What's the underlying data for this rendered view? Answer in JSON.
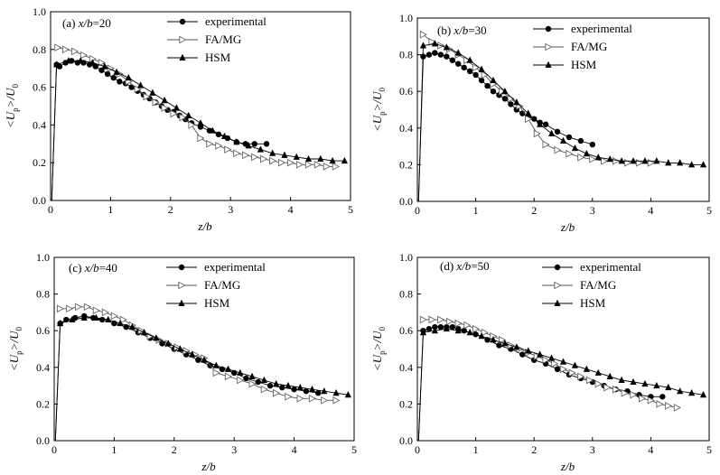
{
  "chart_data": [
    {
      "type": "line",
      "title": "(a) x/b=20",
      "title_parts": {
        "prefix": "(a) ",
        "var": "x/b",
        "rest": "=20"
      },
      "xlabel": "z/b",
      "ylabel": "<Up>/U0",
      "xlim": [
        0,
        5
      ],
      "ylim": [
        0,
        1.0
      ],
      "xticks": [
        "0",
        "1",
        "2",
        "3",
        "4",
        "5"
      ],
      "yticks": [
        "0.0",
        "0.2",
        "0.4",
        "0.6",
        "0.8",
        "1.0"
      ],
      "legend": "top-right",
      "series": [
        {
          "name": "experimental",
          "marker": "circle",
          "x": [
            0.02,
            0.1,
            0.15,
            0.25,
            0.35,
            0.45,
            0.55,
            0.65,
            0.75,
            0.85,
            0.95,
            1.05,
            1.15,
            1.25,
            1.35,
            1.45,
            1.55,
            1.65,
            1.75,
            1.85,
            1.95,
            2.05,
            2.15,
            2.25,
            2.35,
            2.5,
            2.65,
            2.8,
            2.95,
            3.1,
            3.25,
            3.4,
            3.6
          ],
          "y": [
            0.0,
            0.72,
            0.71,
            0.73,
            0.74,
            0.73,
            0.73,
            0.72,
            0.71,
            0.69,
            0.67,
            0.65,
            0.63,
            0.62,
            0.6,
            0.58,
            0.56,
            0.54,
            0.52,
            0.5,
            0.48,
            0.47,
            0.45,
            0.43,
            0.41,
            0.39,
            0.37,
            0.35,
            0.33,
            0.31,
            0.3,
            0.3,
            0.3
          ]
        },
        {
          "name": "FA/MG",
          "marker": "triangle-right-open",
          "x": [
            0.12,
            0.25,
            0.4,
            0.55,
            0.7,
            0.85,
            1.0,
            1.15,
            1.3,
            1.45,
            1.6,
            1.75,
            1.9,
            2.05,
            2.2,
            2.35,
            2.5,
            2.65,
            2.8,
            2.95,
            3.1,
            3.25,
            3.4,
            3.55,
            3.7,
            3.85,
            4.0,
            4.15,
            4.3,
            4.45,
            4.6,
            4.75
          ],
          "y": [
            0.81,
            0.8,
            0.79,
            0.77,
            0.75,
            0.73,
            0.7,
            0.67,
            0.63,
            0.59,
            0.55,
            0.52,
            0.49,
            0.46,
            0.44,
            0.4,
            0.33,
            0.3,
            0.29,
            0.27,
            0.25,
            0.24,
            0.23,
            0.22,
            0.21,
            0.2,
            0.2,
            0.19,
            0.19,
            0.19,
            0.18,
            0.18
          ]
        },
        {
          "name": "HSM",
          "marker": "triangle-up",
          "x": [
            0.02,
            0.1,
            0.3,
            0.5,
            0.7,
            0.9,
            1.1,
            1.3,
            1.5,
            1.7,
            1.9,
            2.1,
            2.3,
            2.5,
            2.7,
            2.9,
            3.1,
            3.3,
            3.5,
            3.7,
            3.9,
            4.1,
            4.3,
            4.5,
            4.7,
            4.9
          ],
          "y": [
            0.0,
            0.72,
            0.74,
            0.74,
            0.73,
            0.71,
            0.68,
            0.65,
            0.61,
            0.57,
            0.53,
            0.49,
            0.45,
            0.41,
            0.37,
            0.34,
            0.31,
            0.29,
            0.27,
            0.25,
            0.24,
            0.23,
            0.22,
            0.22,
            0.21,
            0.21
          ]
        }
      ]
    },
    {
      "type": "line",
      "title": "(b) x/b=30",
      "title_parts": {
        "prefix": "(b) ",
        "var": "x/b",
        "rest": "=30"
      },
      "xlabel": "z/b",
      "ylabel": "<Up>/U0",
      "xlim": [
        0,
        5
      ],
      "ylim": [
        0,
        1.0
      ],
      "xticks": [
        "0",
        "1",
        "2",
        "3",
        "4",
        "5"
      ],
      "yticks": [
        "0.0",
        "0.2",
        "0.4",
        "0.6",
        "0.8",
        "1.0"
      ],
      "legend": "top-right",
      "series": [
        {
          "name": "experimental",
          "marker": "circle",
          "x": [
            0.02,
            0.1,
            0.2,
            0.3,
            0.4,
            0.5,
            0.6,
            0.7,
            0.8,
            0.9,
            1.0,
            1.1,
            1.2,
            1.3,
            1.4,
            1.5,
            1.6,
            1.7,
            1.8,
            1.9,
            2.0,
            2.1,
            2.2,
            2.4,
            2.6,
            2.8,
            3.0
          ],
          "y": [
            0.0,
            0.79,
            0.8,
            0.81,
            0.8,
            0.79,
            0.77,
            0.75,
            0.73,
            0.71,
            0.69,
            0.66,
            0.63,
            0.6,
            0.58,
            0.56,
            0.53,
            0.5,
            0.48,
            0.46,
            0.45,
            0.43,
            0.42,
            0.38,
            0.35,
            0.33,
            0.31
          ]
        },
        {
          "name": "FA/MG",
          "marker": "triangle-right-open",
          "x": [
            0.1,
            0.25,
            0.4,
            0.55,
            0.7,
            0.85,
            1.0,
            1.15,
            1.3,
            1.45,
            1.6,
            1.75,
            1.9,
            2.05,
            2.2,
            2.4,
            2.6,
            2.8,
            3.0,
            3.2,
            3.4,
            3.6,
            3.8,
            4.0
          ],
          "y": [
            0.91,
            0.87,
            0.85,
            0.83,
            0.8,
            0.77,
            0.73,
            0.69,
            0.64,
            0.6,
            0.56,
            0.52,
            0.45,
            0.37,
            0.31,
            0.28,
            0.26,
            0.24,
            0.23,
            0.22,
            0.22,
            0.21,
            0.21,
            0.21
          ]
        },
        {
          "name": "HSM",
          "marker": "triangle-up",
          "x": [
            0.02,
            0.1,
            0.3,
            0.5,
            0.7,
            0.9,
            1.1,
            1.3,
            1.5,
            1.7,
            1.9,
            2.1,
            2.3,
            2.5,
            2.7,
            2.9,
            3.1,
            3.3,
            3.5,
            3.7,
            3.9,
            4.1,
            4.3,
            4.5,
            4.7,
            4.9
          ],
          "y": [
            0.0,
            0.85,
            0.86,
            0.84,
            0.81,
            0.77,
            0.72,
            0.66,
            0.6,
            0.54,
            0.48,
            0.42,
            0.37,
            0.33,
            0.29,
            0.26,
            0.24,
            0.23,
            0.22,
            0.22,
            0.22,
            0.22,
            0.21,
            0.21,
            0.2,
            0.2
          ]
        }
      ]
    },
    {
      "type": "line",
      "title": "(c) x/b=40",
      "title_parts": {
        "prefix": "(c) ",
        "var": "x/b",
        "rest": "=40"
      },
      "xlabel": "z/b",
      "ylabel": "<Up>/U0",
      "xlim": [
        0,
        5
      ],
      "ylim": [
        0,
        1.0
      ],
      "xticks": [
        "0",
        "1",
        "2",
        "3",
        "4",
        "5"
      ],
      "yticks": [
        "0.0",
        "0.2",
        "0.4",
        "0.6",
        "0.8",
        "1.0"
      ],
      "legend": "top-right",
      "series": [
        {
          "name": "experimental",
          "marker": "circle",
          "x": [
            0.02,
            0.1,
            0.2,
            0.35,
            0.5,
            0.65,
            0.8,
            1.0,
            1.2,
            1.4,
            1.6,
            1.8,
            2.0,
            2.2,
            2.4,
            2.6,
            2.8,
            3.0,
            3.2,
            3.4,
            3.6,
            3.8,
            4.0,
            4.2,
            4.4
          ],
          "y": [
            0.0,
            0.64,
            0.66,
            0.67,
            0.68,
            0.67,
            0.66,
            0.64,
            0.62,
            0.59,
            0.56,
            0.53,
            0.5,
            0.47,
            0.44,
            0.41,
            0.39,
            0.37,
            0.34,
            0.32,
            0.3,
            0.29,
            0.28,
            0.27,
            0.26
          ]
        },
        {
          "name": "FA/MG",
          "marker": "triangle-right-open",
          "x": [
            0.1,
            0.25,
            0.4,
            0.55,
            0.7,
            0.85,
            1.0,
            1.15,
            1.3,
            1.45,
            1.6,
            1.75,
            1.9,
            2.05,
            2.2,
            2.35,
            2.5,
            2.7,
            2.9,
            3.1,
            3.3,
            3.5,
            3.7,
            3.9,
            4.1,
            4.3,
            4.5,
            4.7
          ],
          "y": [
            0.72,
            0.72,
            0.73,
            0.73,
            0.71,
            0.7,
            0.68,
            0.66,
            0.63,
            0.6,
            0.57,
            0.55,
            0.53,
            0.51,
            0.49,
            0.47,
            0.45,
            0.37,
            0.35,
            0.33,
            0.31,
            0.28,
            0.26,
            0.24,
            0.23,
            0.23,
            0.22,
            0.22
          ]
        },
        {
          "name": "HSM",
          "marker": "triangle-up",
          "x": [
            0.02,
            0.1,
            0.3,
            0.5,
            0.7,
            0.9,
            1.1,
            1.3,
            1.5,
            1.7,
            1.9,
            2.1,
            2.3,
            2.5,
            2.7,
            2.9,
            3.1,
            3.3,
            3.5,
            3.7,
            3.9,
            4.1,
            4.3,
            4.5,
            4.7,
            4.9
          ],
          "y": [
            0.0,
            0.64,
            0.66,
            0.67,
            0.67,
            0.66,
            0.64,
            0.62,
            0.59,
            0.56,
            0.53,
            0.5,
            0.47,
            0.44,
            0.41,
            0.39,
            0.37,
            0.35,
            0.33,
            0.31,
            0.3,
            0.29,
            0.28,
            0.27,
            0.26,
            0.25
          ]
        }
      ]
    },
    {
      "type": "line",
      "title": "(d) x/b=50",
      "title_parts": {
        "prefix": "(d) ",
        "var": "x/b",
        "rest": "=50"
      },
      "xlabel": "z/b",
      "ylabel": "<Up>/U0",
      "xlim": [
        0,
        5
      ],
      "ylim": [
        0,
        1.0
      ],
      "xticks": [
        "0",
        "1",
        "2",
        "3",
        "4",
        "5"
      ],
      "yticks": [
        "0.0",
        "0.2",
        "0.4",
        "0.6",
        "0.8",
        "1.0"
      ],
      "legend": "top-right",
      "series": [
        {
          "name": "experimental",
          "marker": "circle",
          "x": [
            0.02,
            0.1,
            0.2,
            0.3,
            0.4,
            0.5,
            0.6,
            0.7,
            0.8,
            1.0,
            1.2,
            1.4,
            1.6,
            1.8,
            2.0,
            2.2,
            2.4,
            2.6,
            2.8,
            3.0,
            3.2,
            3.4,
            3.6,
            3.8,
            4.0,
            4.2
          ],
          "y": [
            0.0,
            0.6,
            0.61,
            0.62,
            0.62,
            0.62,
            0.62,
            0.61,
            0.6,
            0.58,
            0.55,
            0.52,
            0.5,
            0.47,
            0.44,
            0.42,
            0.39,
            0.36,
            0.34,
            0.32,
            0.3,
            0.28,
            0.27,
            0.25,
            0.24,
            0.24
          ]
        },
        {
          "name": "FA/MG",
          "marker": "triangle-right-open",
          "x": [
            0.1,
            0.25,
            0.4,
            0.55,
            0.7,
            0.85,
            1.0,
            1.15,
            1.3,
            1.45,
            1.6,
            1.75,
            1.9,
            2.05,
            2.2,
            2.35,
            2.5,
            2.65,
            2.8,
            2.95,
            3.1,
            3.25,
            3.4,
            3.55,
            3.7,
            3.85,
            4.0,
            4.15,
            4.3,
            4.45
          ],
          "y": [
            0.66,
            0.66,
            0.66,
            0.65,
            0.64,
            0.63,
            0.61,
            0.59,
            0.57,
            0.55,
            0.52,
            0.5,
            0.48,
            0.46,
            0.44,
            0.42,
            0.39,
            0.37,
            0.35,
            0.33,
            0.31,
            0.29,
            0.28,
            0.26,
            0.25,
            0.23,
            0.22,
            0.2,
            0.19,
            0.18
          ]
        },
        {
          "name": "HSM",
          "marker": "triangle-up",
          "x": [
            0.02,
            0.1,
            0.3,
            0.5,
            0.7,
            0.9,
            1.1,
            1.3,
            1.5,
            1.7,
            1.9,
            2.1,
            2.3,
            2.5,
            2.7,
            2.9,
            3.1,
            3.3,
            3.5,
            3.7,
            3.9,
            4.1,
            4.3,
            4.5,
            4.7,
            4.9
          ],
          "y": [
            0.0,
            0.59,
            0.6,
            0.61,
            0.6,
            0.59,
            0.57,
            0.55,
            0.53,
            0.51,
            0.49,
            0.47,
            0.45,
            0.43,
            0.41,
            0.39,
            0.37,
            0.35,
            0.33,
            0.32,
            0.31,
            0.3,
            0.29,
            0.27,
            0.26,
            0.25
          ]
        }
      ]
    }
  ]
}
